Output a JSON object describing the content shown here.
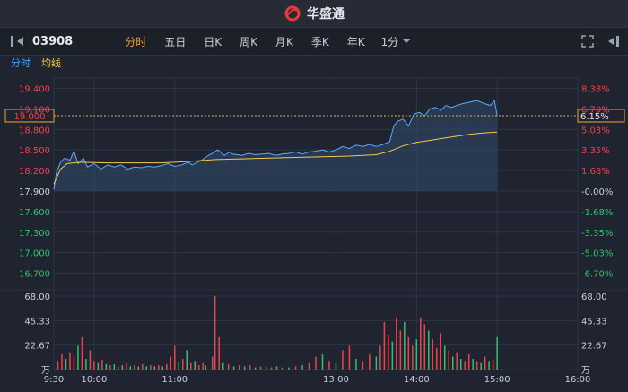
{
  "brand": {
    "name": "华盛通"
  },
  "toolbar": {
    "symbol": "03908",
    "tabs": [
      "分时",
      "五日",
      "日K",
      "周K",
      "月K",
      "季K",
      "年K"
    ],
    "active_tab": 0,
    "minute_select": "1分"
  },
  "subtabs": {
    "timeshare": "分时",
    "avg_line": "均线"
  },
  "colors": {
    "up": "#f0424a",
    "down": "#32c26b",
    "price_line": "#5aa9ff",
    "avg_line": "#f2c94c",
    "accent": "#f2a33a",
    "bg": "#1f2430",
    "grid": "#2f3543"
  },
  "chart_data": {
    "type": "line",
    "prev_close": 17.9,
    "current_price": 19.0,
    "current_pct": "6.15%",
    "y_labels": [
      "19.400",
      "19.100",
      "18.800",
      "18.500",
      "18.200",
      "17.900",
      "17.600",
      "17.300",
      "17.000",
      "16.700"
    ],
    "pct_labels": [
      "8.38%",
      "6.70%",
      "5.03%",
      "3.35%",
      "1.68%",
      "-0.00%",
      "-1.68%",
      "-3.35%",
      "-5.03%",
      "-6.70%"
    ],
    "vol_labels": [
      "68.00",
      "45.33",
      "22.67",
      "万"
    ],
    "x_labels": [
      "9:30",
      "10:00",
      "11:00",
      "13:00",
      "14:00",
      "15:00",
      "16:00"
    ],
    "ylim": [
      16.55,
      19.55
    ],
    "price_series": [
      [
        0,
        17.92
      ],
      [
        2,
        18.18
      ],
      [
        5,
        18.32
      ],
      [
        8,
        18.38
      ],
      [
        12,
        18.35
      ],
      [
        15,
        18.48
      ],
      [
        18,
        18.3
      ],
      [
        22,
        18.38
      ],
      [
        25,
        18.25
      ],
      [
        30,
        18.3
      ],
      [
        35,
        18.22
      ],
      [
        40,
        18.28
      ],
      [
        45,
        18.25
      ],
      [
        50,
        18.28
      ],
      [
        55,
        18.22
      ],
      [
        60,
        18.25
      ],
      [
        65,
        18.24
      ],
      [
        70,
        18.26
      ],
      [
        75,
        18.25
      ],
      [
        80,
        18.27
      ],
      [
        85,
        18.3
      ],
      [
        90,
        18.26
      ],
      [
        95,
        18.28
      ],
      [
        100,
        18.32
      ],
      [
        103,
        18.28
      ],
      [
        110,
        18.35
      ],
      [
        115,
        18.42
      ],
      [
        118,
        18.45
      ],
      [
        122,
        18.5
      ],
      [
        127,
        18.42
      ],
      [
        131,
        18.47
      ],
      [
        133,
        18.44
      ],
      [
        140,
        18.42
      ],
      [
        145,
        18.45
      ],
      [
        150,
        18.43
      ],
      [
        155,
        18.44
      ],
      [
        160,
        18.45
      ],
      [
        165,
        18.42
      ],
      [
        170,
        18.44
      ],
      [
        175,
        18.45
      ],
      [
        180,
        18.47
      ],
      [
        185,
        18.44
      ],
      [
        190,
        18.47
      ],
      [
        195,
        18.48
      ],
      [
        200,
        18.5
      ],
      [
        205,
        18.47
      ],
      [
        210,
        18.5
      ],
      [
        215,
        18.55
      ],
      [
        220,
        18.52
      ],
      [
        225,
        18.57
      ],
      [
        230,
        18.55
      ],
      [
        235,
        18.58
      ],
      [
        240,
        18.55
      ],
      [
        245,
        18.58
      ],
      [
        250,
        18.62
      ],
      [
        253,
        18.85
      ],
      [
        256,
        18.92
      ],
      [
        260,
        18.95
      ],
      [
        264,
        18.85
      ],
      [
        268,
        19.02
      ],
      [
        272,
        19.05
      ],
      [
        276,
        19.0
      ],
      [
        280,
        19.1
      ],
      [
        284,
        19.12
      ],
      [
        288,
        19.08
      ],
      [
        292,
        19.15
      ],
      [
        296,
        19.12
      ],
      [
        300,
        19.15
      ],
      [
        305,
        19.18
      ],
      [
        310,
        19.2
      ],
      [
        315,
        19.22
      ],
      [
        320,
        19.18
      ],
      [
        325,
        19.15
      ],
      [
        328,
        19.22
      ],
      [
        330,
        19.0
      ]
    ],
    "avg_series": [
      [
        0,
        18.0
      ],
      [
        5,
        18.22
      ],
      [
        10,
        18.3
      ],
      [
        20,
        18.32
      ],
      [
        40,
        18.31
      ],
      [
        60,
        18.31
      ],
      [
        80,
        18.31
      ],
      [
        100,
        18.33
      ],
      [
        120,
        18.36
      ],
      [
        140,
        18.37
      ],
      [
        160,
        18.38
      ],
      [
        180,
        18.39
      ],
      [
        200,
        18.4
      ],
      [
        220,
        18.41
      ],
      [
        240,
        18.43
      ],
      [
        250,
        18.48
      ],
      [
        260,
        18.56
      ],
      [
        270,
        18.61
      ],
      [
        280,
        18.64
      ],
      [
        290,
        18.67
      ],
      [
        300,
        18.7
      ],
      [
        310,
        18.73
      ],
      [
        320,
        18.75
      ],
      [
        330,
        18.76
      ]
    ],
    "volume": [
      [
        3,
        8,
        1
      ],
      [
        6,
        14,
        1
      ],
      [
        9,
        10,
        0
      ],
      [
        12,
        16,
        1
      ],
      [
        15,
        12,
        1
      ],
      [
        18,
        22,
        0
      ],
      [
        21,
        30,
        1
      ],
      [
        24,
        10,
        0
      ],
      [
        27,
        18,
        1
      ],
      [
        30,
        8,
        1
      ],
      [
        33,
        6,
        0
      ],
      [
        36,
        9,
        1
      ],
      [
        39,
        5,
        0
      ],
      [
        42,
        4,
        1
      ],
      [
        45,
        5,
        0
      ],
      [
        48,
        3,
        1
      ],
      [
        51,
        4,
        0
      ],
      [
        54,
        6,
        1
      ],
      [
        57,
        3,
        0
      ],
      [
        60,
        4,
        1
      ],
      [
        63,
        3,
        0
      ],
      [
        66,
        5,
        1
      ],
      [
        69,
        3,
        0
      ],
      [
        72,
        4,
        1
      ],
      [
        75,
        3,
        0
      ],
      [
        78,
        4,
        1
      ],
      [
        81,
        3,
        0
      ],
      [
        84,
        5,
        1
      ],
      [
        87,
        12,
        1
      ],
      [
        90,
        22,
        1
      ],
      [
        93,
        8,
        0
      ],
      [
        96,
        10,
        1
      ],
      [
        99,
        18,
        0
      ],
      [
        102,
        6,
        1
      ],
      [
        105,
        8,
        0
      ],
      [
        108,
        4,
        1
      ],
      [
        111,
        6,
        1
      ],
      [
        113,
        4,
        0
      ],
      [
        118,
        12,
        1
      ],
      [
        120,
        68,
        1
      ],
      [
        123,
        30,
        1
      ],
      [
        126,
        6,
        0
      ],
      [
        130,
        5,
        1
      ],
      [
        134,
        3,
        0
      ],
      [
        138,
        4,
        1
      ],
      [
        142,
        3,
        0
      ],
      [
        146,
        4,
        1
      ],
      [
        150,
        2,
        0
      ],
      [
        154,
        3,
        1
      ],
      [
        158,
        3,
        0
      ],
      [
        162,
        2,
        1
      ],
      [
        166,
        3,
        0
      ],
      [
        170,
        2,
        1
      ],
      [
        175,
        2,
        0
      ],
      [
        180,
        3,
        1
      ],
      [
        185,
        4,
        0
      ],
      [
        190,
        6,
        1
      ],
      [
        195,
        12,
        1
      ],
      [
        200,
        14,
        0
      ],
      [
        205,
        8,
        1
      ],
      [
        210,
        6,
        0
      ],
      [
        215,
        18,
        1
      ],
      [
        220,
        22,
        1
      ],
      [
        225,
        10,
        0
      ],
      [
        230,
        8,
        1
      ],
      [
        235,
        14,
        1
      ],
      [
        240,
        12,
        0
      ],
      [
        243,
        22,
        1
      ],
      [
        246,
        44,
        1
      ],
      [
        249,
        32,
        1
      ],
      [
        252,
        26,
        0
      ],
      [
        255,
        48,
        1
      ],
      [
        258,
        36,
        1
      ],
      [
        261,
        44,
        0
      ],
      [
        264,
        30,
        1
      ],
      [
        267,
        22,
        1
      ],
      [
        270,
        28,
        0
      ],
      [
        273,
        48,
        1
      ],
      [
        276,
        42,
        1
      ],
      [
        279,
        36,
        0
      ],
      [
        282,
        28,
        1
      ],
      [
        285,
        20,
        1
      ],
      [
        288,
        34,
        1
      ],
      [
        291,
        22,
        0
      ],
      [
        294,
        18,
        1
      ],
      [
        297,
        12,
        0
      ],
      [
        300,
        16,
        1
      ],
      [
        303,
        10,
        0
      ],
      [
        306,
        8,
        1
      ],
      [
        309,
        14,
        1
      ],
      [
        312,
        10,
        0
      ],
      [
        315,
        8,
        1
      ],
      [
        318,
        6,
        0
      ],
      [
        321,
        12,
        1
      ],
      [
        324,
        8,
        0
      ],
      [
        327,
        10,
        1
      ],
      [
        330,
        30,
        0
      ]
    ]
  }
}
